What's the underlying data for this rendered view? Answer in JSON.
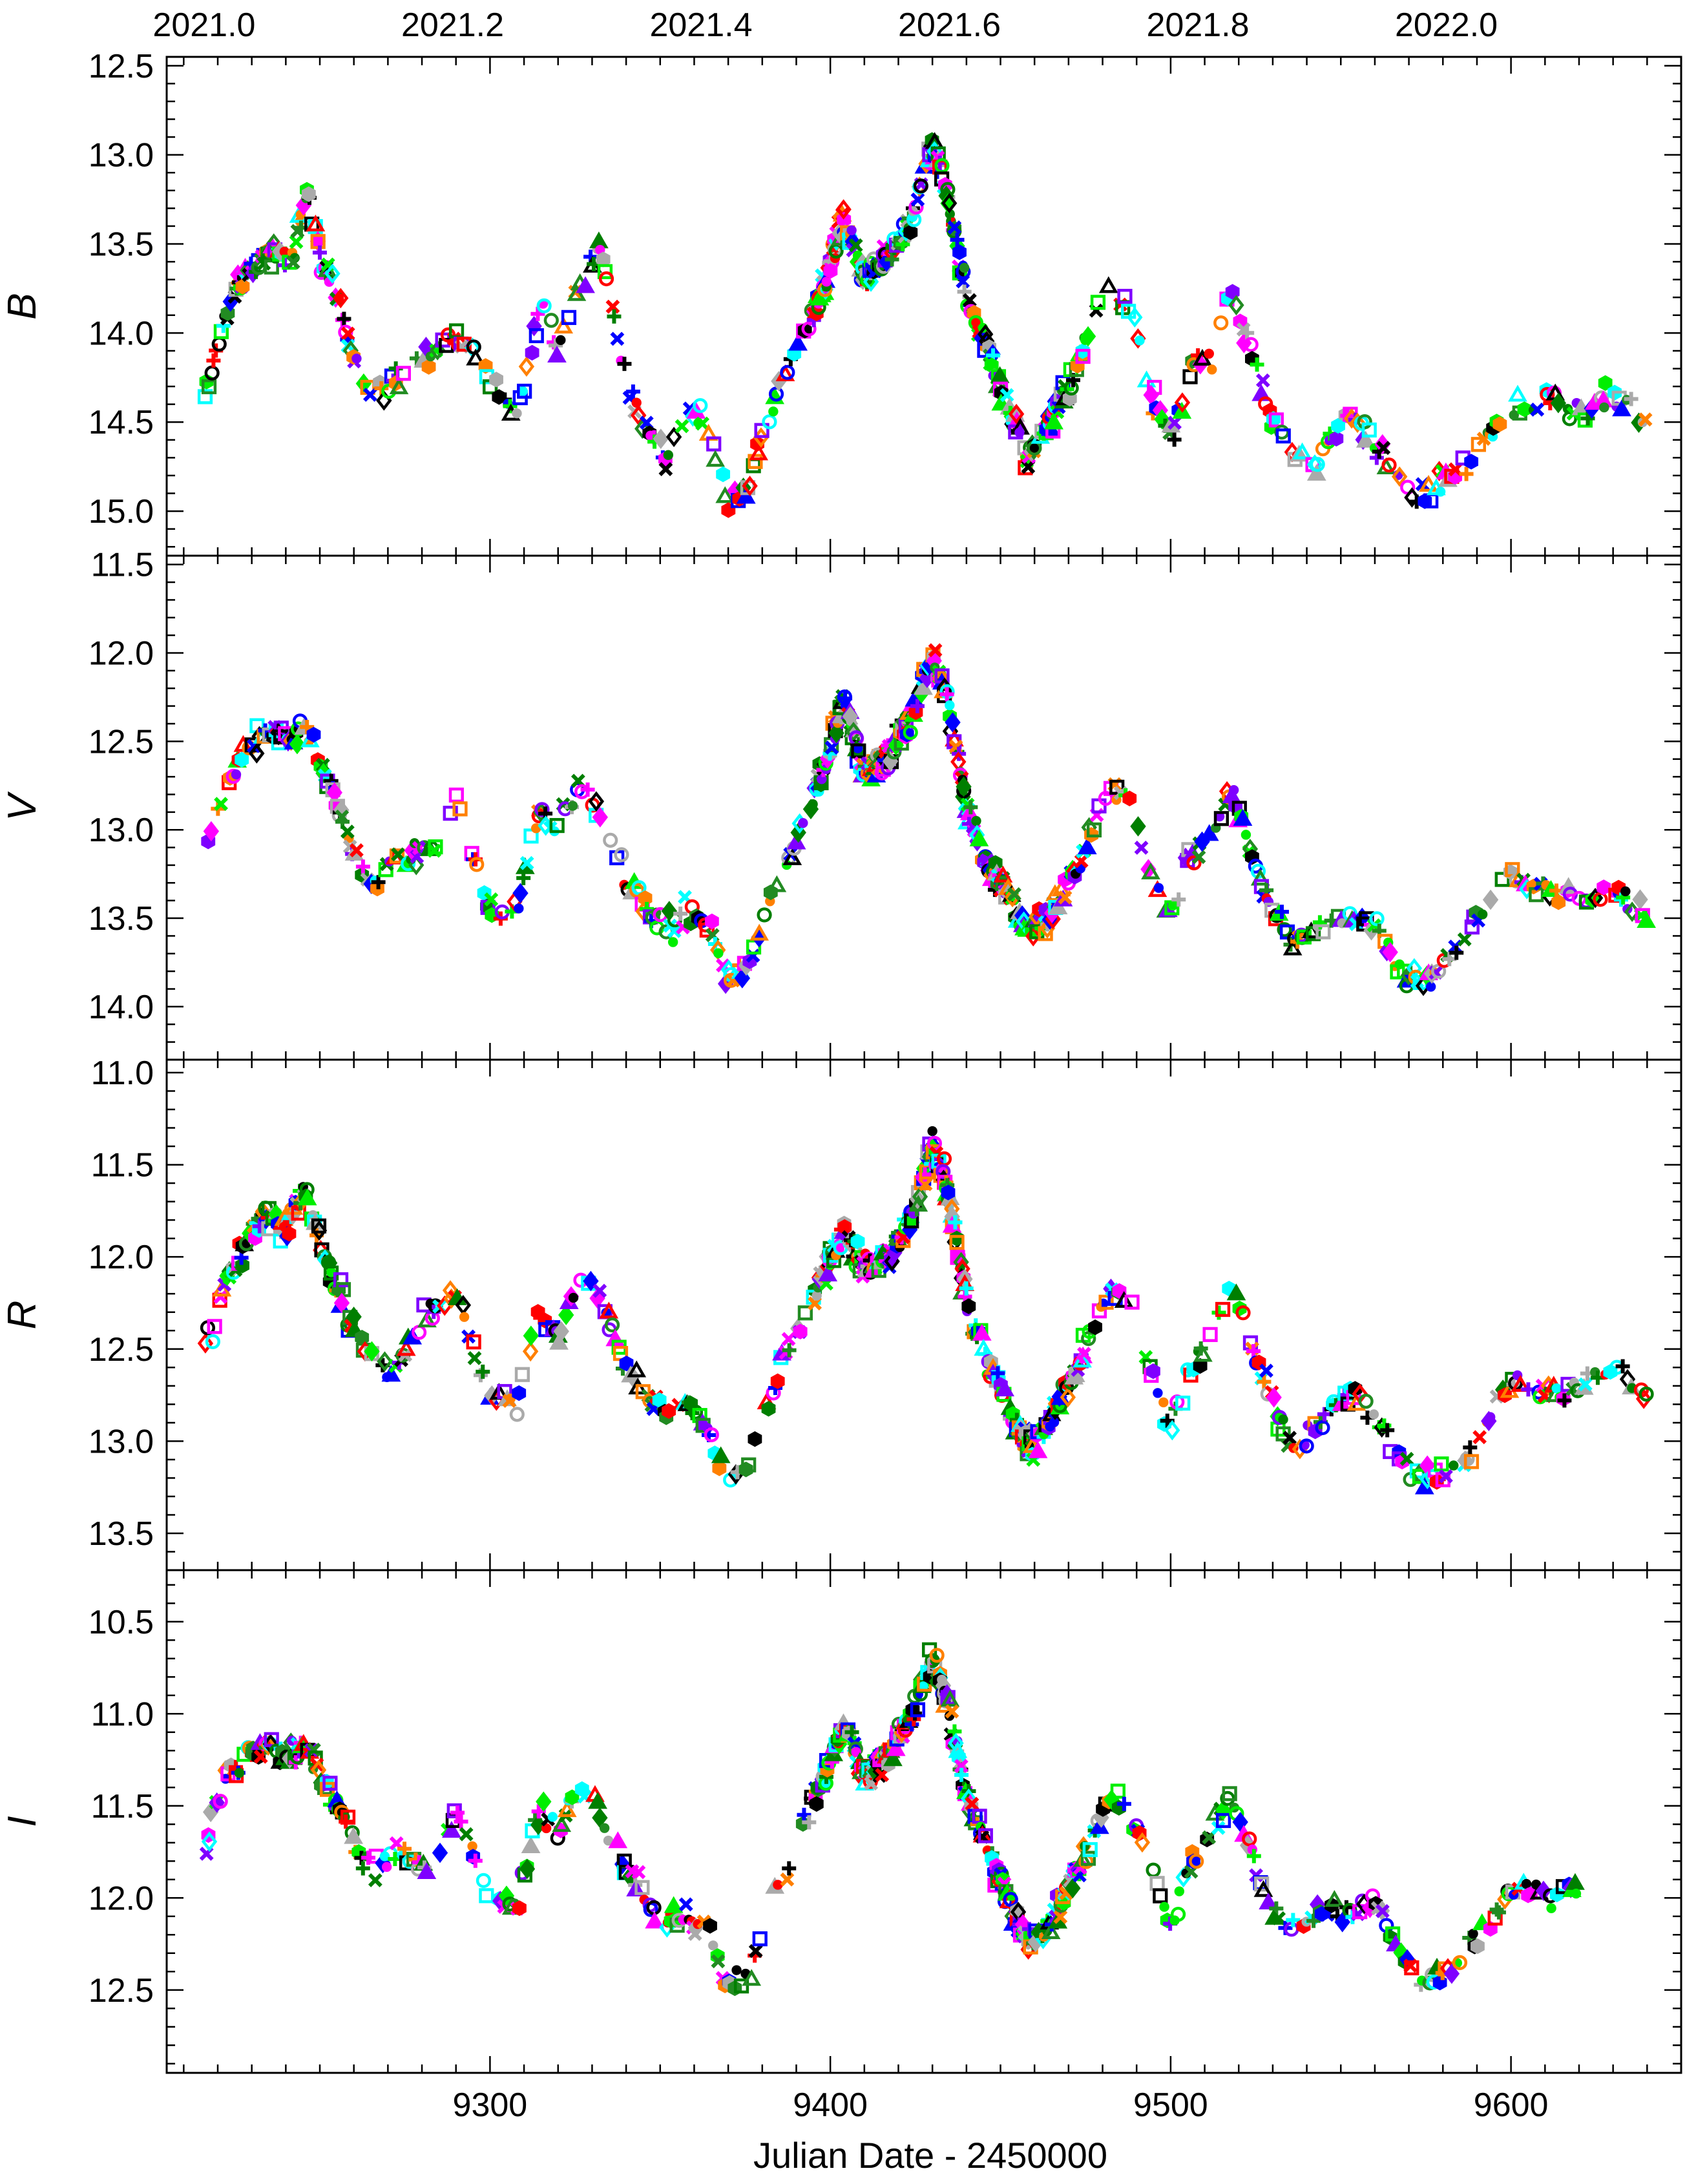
{
  "chart_data": {
    "type": "scatter",
    "xlabel": "Julian Date - 2450000",
    "xlim": [
      9205,
      9650
    ],
    "x_major_ticks": [
      9300,
      9400,
      9500,
      9600
    ],
    "x_tick_labels": [
      "9300",
      "9400",
      "9500",
      "9600"
    ],
    "x_minor_step": 10,
    "top_axis": {
      "labels": [
        "2021.0",
        "2021.2",
        "2021.4",
        "2021.6",
        "2021.8",
        "2022.0"
      ],
      "jd_positions": [
        9216,
        9289,
        9362,
        9435,
        9508,
        9581
      ]
    },
    "marker_colors": [
      "#ff0000",
      "#ff00ff",
      "#00ee00",
      "#0000ff",
      "#ff8000",
      "#000000",
      "#00ffff",
      "#7f00ff",
      "#007f00",
      "#aaaaaa",
      "#228b22"
    ],
    "panels": [
      {
        "band": "B",
        "ylim": [
          15.25,
          12.45
        ],
        "yticks": [
          12.5,
          13.0,
          13.5,
          14.0,
          14.5,
          15.0
        ],
        "ytick_labels": [
          "12.5",
          "13.0",
          "13.5",
          "14.0",
          "14.5",
          "15.0"
        ],
        "light_curve": [
          [
            9216,
            14.35
          ],
          [
            9222,
            13.95
          ],
          [
            9228,
            13.65
          ],
          [
            9235,
            13.55
          ],
          [
            9242,
            13.6
          ],
          [
            9246,
            13.2
          ],
          [
            9250,
            13.55
          ],
          [
            9256,
            13.85
          ],
          [
            9262,
            14.3
          ],
          [
            9270,
            14.3
          ],
          [
            9280,
            14.15
          ],
          [
            9290,
            14.0
          ],
          [
            9300,
            14.25
          ],
          [
            9308,
            14.45
          ],
          [
            9315,
            13.8
          ],
          [
            9320,
            14.1
          ],
          [
            9325,
            13.8
          ],
          [
            9332,
            13.5
          ],
          [
            9340,
            14.3
          ],
          [
            9346,
            14.5
          ],
          [
            9352,
            14.7
          ],
          [
            9358,
            14.35
          ],
          [
            9364,
            14.55
          ],
          [
            9370,
            14.95
          ],
          [
            9376,
            14.85
          ],
          [
            9382,
            14.45
          ],
          [
            9390,
            14.1
          ],
          [
            9398,
            13.75
          ],
          [
            9404,
            13.35
          ],
          [
            9410,
            13.7
          ],
          [
            9418,
            13.55
          ],
          [
            9424,
            13.35
          ],
          [
            9430,
            12.95
          ],
          [
            9434,
            13.2
          ],
          [
            9440,
            13.8
          ],
          [
            9446,
            14.1
          ],
          [
            9452,
            14.4
          ],
          [
            9458,
            14.7
          ],
          [
            9464,
            14.5
          ],
          [
            9470,
            14.3
          ],
          [
            9476,
            14.0
          ],
          [
            9482,
            13.75
          ],
          [
            9488,
            13.85
          ],
          [
            9494,
            14.3
          ],
          [
            9500,
            14.6
          ],
          [
            9506,
            14.2
          ],
          [
            9512,
            14.15
          ],
          [
            9518,
            13.75
          ],
          [
            9524,
            14.15
          ],
          [
            9530,
            14.5
          ],
          [
            9536,
            14.65
          ],
          [
            9542,
            14.75
          ],
          [
            9548,
            14.55
          ],
          [
            9554,
            14.45
          ],
          [
            9560,
            14.6
          ],
          [
            9566,
            14.8
          ],
          [
            9572,
            14.9
          ],
          [
            9578,
            14.85
          ],
          [
            9585,
            14.75
          ],
          [
            9592,
            14.6
          ],
          [
            9600,
            14.45
          ],
          [
            9610,
            14.35
          ],
          [
            9620,
            14.45
          ],
          [
            9630,
            14.35
          ],
          [
            9640,
            14.55
          ]
        ]
      },
      {
        "band": "V",
        "ylim": [
          14.3,
          11.45
        ],
        "yticks": [
          11.5,
          12.0,
          12.5,
          13.0,
          13.5,
          14.0
        ],
        "ytick_labels": [
          "11.5",
          "12.0",
          "12.5",
          "13.0",
          "13.5",
          "14.0"
        ],
        "light_curve": [
          [
            9216,
            13.1
          ],
          [
            9222,
            12.75
          ],
          [
            9228,
            12.55
          ],
          [
            9234,
            12.45
          ],
          [
            9240,
            12.5
          ],
          [
            9246,
            12.45
          ],
          [
            9252,
            12.7
          ],
          [
            9258,
            13.0
          ],
          [
            9264,
            13.35
          ],
          [
            9272,
            13.15
          ],
          [
            9282,
            13.15
          ],
          [
            9290,
            12.85
          ],
          [
            9300,
            13.45
          ],
          [
            9308,
            13.45
          ],
          [
            9314,
            12.9
          ],
          [
            9320,
            13.0
          ],
          [
            9326,
            12.75
          ],
          [
            9332,
            12.9
          ],
          [
            9340,
            13.3
          ],
          [
            9346,
            13.45
          ],
          [
            9352,
            13.55
          ],
          [
            9358,
            13.45
          ],
          [
            9364,
            13.55
          ],
          [
            9370,
            13.85
          ],
          [
            9376,
            13.75
          ],
          [
            9382,
            13.4
          ],
          [
            9390,
            13.05
          ],
          [
            9398,
            12.65
          ],
          [
            9404,
            12.25
          ],
          [
            9410,
            12.7
          ],
          [
            9418,
            12.55
          ],
          [
            9424,
            12.35
          ],
          [
            9430,
            12.0
          ],
          [
            9434,
            12.25
          ],
          [
            9440,
            12.85
          ],
          [
            9446,
            13.2
          ],
          [
            9452,
            13.35
          ],
          [
            9458,
            13.6
          ],
          [
            9464,
            13.5
          ],
          [
            9470,
            13.3
          ],
          [
            9476,
            13.05
          ],
          [
            9482,
            12.75
          ],
          [
            9488,
            12.85
          ],
          [
            9494,
            13.25
          ],
          [
            9500,
            13.5
          ],
          [
            9506,
            13.15
          ],
          [
            9512,
            13.05
          ],
          [
            9518,
            12.8
          ],
          [
            9524,
            13.15
          ],
          [
            9530,
            13.45
          ],
          [
            9536,
            13.65
          ],
          [
            9542,
            13.6
          ],
          [
            9548,
            13.5
          ],
          [
            9554,
            13.55
          ],
          [
            9560,
            13.5
          ],
          [
            9566,
            13.75
          ],
          [
            9572,
            13.85
          ],
          [
            9578,
            13.8
          ],
          [
            9585,
            13.65
          ],
          [
            9592,
            13.45
          ],
          [
            9600,
            13.25
          ],
          [
            9610,
            13.35
          ],
          [
            9620,
            13.4
          ],
          [
            9630,
            13.35
          ],
          [
            9640,
            13.5
          ]
        ]
      },
      {
        "band": "R",
        "ylim": [
          13.7,
          10.93
        ],
        "yticks": [
          11.0,
          11.5,
          12.0,
          12.5,
          13.0,
          13.5
        ],
        "ytick_labels": [
          "11.0",
          "11.5",
          "12.0",
          "12.5",
          "13.0",
          "13.5"
        ],
        "light_curve": [
          [
            9216,
            12.55
          ],
          [
            9222,
            12.15
          ],
          [
            9228,
            11.95
          ],
          [
            9234,
            11.75
          ],
          [
            9240,
            11.85
          ],
          [
            9246,
            11.65
          ],
          [
            9252,
            12.05
          ],
          [
            9258,
            12.3
          ],
          [
            9264,
            12.55
          ],
          [
            9272,
            12.6
          ],
          [
            9282,
            12.3
          ],
          [
            9290,
            12.2
          ],
          [
            9300,
            12.75
          ],
          [
            9308,
            12.8
          ],
          [
            9314,
            12.3
          ],
          [
            9320,
            12.45
          ],
          [
            9326,
            12.1
          ],
          [
            9332,
            12.2
          ],
          [
            9340,
            12.6
          ],
          [
            9346,
            12.75
          ],
          [
            9352,
            12.85
          ],
          [
            9358,
            12.8
          ],
          [
            9364,
            12.95
          ],
          [
            9370,
            13.25
          ],
          [
            9376,
            13.1
          ],
          [
            9382,
            12.75
          ],
          [
            9390,
            12.4
          ],
          [
            9398,
            12.1
          ],
          [
            9404,
            11.85
          ],
          [
            9410,
            12.05
          ],
          [
            9418,
            12.0
          ],
          [
            9424,
            11.8
          ],
          [
            9430,
            11.4
          ],
          [
            9434,
            11.6
          ],
          [
            9440,
            12.25
          ],
          [
            9446,
            12.55
          ],
          [
            9452,
            12.8
          ],
          [
            9458,
            13.05
          ],
          [
            9464,
            12.9
          ],
          [
            9470,
            12.7
          ],
          [
            9476,
            12.45
          ],
          [
            9482,
            12.15
          ],
          [
            9488,
            12.2
          ],
          [
            9494,
            12.6
          ],
          [
            9500,
            12.95
          ],
          [
            9506,
            12.6
          ],
          [
            9512,
            12.45
          ],
          [
            9518,
            12.15
          ],
          [
            9524,
            12.5
          ],
          [
            9530,
            12.8
          ],
          [
            9536,
            13.05
          ],
          [
            9542,
            12.95
          ],
          [
            9548,
            12.8
          ],
          [
            9554,
            12.75
          ],
          [
            9560,
            12.85
          ],
          [
            9566,
            13.05
          ],
          [
            9572,
            13.2
          ],
          [
            9578,
            13.25
          ],
          [
            9585,
            13.1
          ],
          [
            9592,
            12.95
          ],
          [
            9600,
            12.65
          ],
          [
            9610,
            12.75
          ],
          [
            9620,
            12.7
          ],
          [
            9630,
            12.6
          ],
          [
            9640,
            12.75
          ]
        ]
      },
      {
        "band": "I",
        "ylim": [
          12.95,
          10.22
        ],
        "yticks": [
          10.5,
          11.0,
          11.5,
          12.0,
          12.5
        ],
        "ytick_labels": [
          "10.5",
          "11.0",
          "11.5",
          "12.0",
          "12.5"
        ],
        "light_curve": [
          [
            9216,
            11.75
          ],
          [
            9222,
            11.35
          ],
          [
            9228,
            11.25
          ],
          [
            9234,
            11.15
          ],
          [
            9240,
            11.25
          ],
          [
            9246,
            11.15
          ],
          [
            9252,
            11.4
          ],
          [
            9258,
            11.6
          ],
          [
            9264,
            11.85
          ],
          [
            9272,
            11.75
          ],
          [
            9282,
            11.85
          ],
          [
            9290,
            11.55
          ],
          [
            9300,
            12.0
          ],
          [
            9308,
            12.05
          ],
          [
            9314,
            11.55
          ],
          [
            9320,
            11.65
          ],
          [
            9326,
            11.4
          ],
          [
            9332,
            11.5
          ],
          [
            9340,
            11.85
          ],
          [
            9346,
            12.0
          ],
          [
            9352,
            12.15
          ],
          [
            9358,
            12.1
          ],
          [
            9364,
            12.2
          ],
          [
            9370,
            12.5
          ],
          [
            9376,
            12.4
          ],
          [
            9382,
            12.05
          ],
          [
            9390,
            11.7
          ],
          [
            9398,
            11.35
          ],
          [
            9404,
            11.05
          ],
          [
            9410,
            11.35
          ],
          [
            9418,
            11.2
          ],
          [
            9424,
            11.0
          ],
          [
            9430,
            10.7
          ],
          [
            9434,
            10.9
          ],
          [
            9440,
            11.45
          ],
          [
            9446,
            11.75
          ],
          [
            9452,
            12.0
          ],
          [
            9458,
            12.25
          ],
          [
            9464,
            12.15
          ],
          [
            9470,
            11.95
          ],
          [
            9476,
            11.7
          ],
          [
            9482,
            11.45
          ],
          [
            9488,
            11.5
          ],
          [
            9494,
            11.85
          ],
          [
            9500,
            12.15
          ],
          [
            9506,
            11.8
          ],
          [
            9512,
            11.65
          ],
          [
            9518,
            11.45
          ],
          [
            9524,
            11.8
          ],
          [
            9530,
            12.05
          ],
          [
            9536,
            12.15
          ],
          [
            9542,
            12.1
          ],
          [
            9548,
            12.05
          ],
          [
            9554,
            12.1
          ],
          [
            9560,
            12.0
          ],
          [
            9566,
            12.25
          ],
          [
            9572,
            12.4
          ],
          [
            9578,
            12.45
          ],
          [
            9585,
            12.35
          ],
          [
            9592,
            12.2
          ],
          [
            9600,
            11.95
          ],
          [
            9610,
            12.0
          ],
          [
            9620,
            11.95
          ]
        ]
      }
    ]
  }
}
